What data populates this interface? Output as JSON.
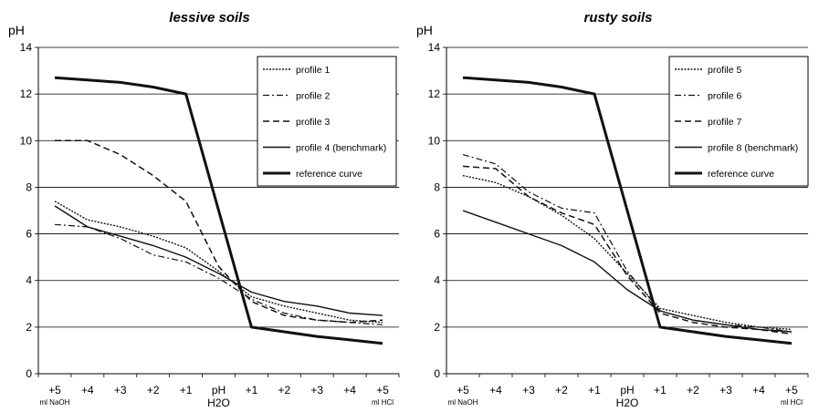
{
  "chart_data": [
    {
      "type": "line",
      "title": "lessive soils",
      "ylabel": "pH",
      "ylim": [
        0,
        14
      ],
      "yticks": [
        0,
        2,
        4,
        6,
        8,
        10,
        12,
        14
      ],
      "grid": true,
      "legend": "top-right",
      "categories": [
        "+5",
        "+4",
        "+3",
        "+2",
        "+1",
        "pH",
        "+1",
        "+2",
        "+3",
        "+4",
        "+5"
      ],
      "xlabel_left_sub": "ml NaOH",
      "xlabel_center_sub": "H2O",
      "xlabel_right_sub": "ml HCl",
      "series": [
        {
          "name": "profile 1",
          "style": "dotted",
          "values": [
            7.4,
            6.6,
            6.3,
            5.9,
            5.4,
            4.4,
            3.3,
            2.9,
            2.6,
            2.3,
            2.2
          ]
        },
        {
          "name": "profile 2",
          "style": "dashdot",
          "values": [
            6.4,
            6.3,
            5.8,
            5.1,
            4.8,
            4.1,
            3.2,
            2.6,
            2.3,
            2.2,
            2.1
          ]
        },
        {
          "name": "profile 3",
          "style": "dashed",
          "values": [
            10.0,
            10.0,
            9.4,
            8.5,
            7.4,
            4.6,
            3.1,
            2.5,
            2.3,
            2.2,
            2.3
          ]
        },
        {
          "name": "profile 4 (benchmark)",
          "style": "solid",
          "values": [
            7.2,
            6.3,
            5.9,
            5.5,
            5.0,
            4.3,
            3.5,
            3.1,
            2.9,
            2.6,
            2.5
          ]
        },
        {
          "name": "reference curve",
          "style": "bold",
          "values": [
            12.7,
            12.6,
            12.5,
            12.3,
            12.0,
            7.0,
            2.0,
            1.8,
            1.6,
            1.45,
            1.3
          ]
        }
      ]
    },
    {
      "type": "line",
      "title": "rusty soils",
      "ylabel": "pH",
      "ylim": [
        0,
        14
      ],
      "yticks": [
        0,
        2,
        4,
        6,
        8,
        10,
        12,
        14
      ],
      "grid": true,
      "legend": "top-right",
      "categories": [
        "+5",
        "+4",
        "+3",
        "+2",
        "+1",
        "pH",
        "+1",
        "+2",
        "+3",
        "+4",
        "+5"
      ],
      "xlabel_left_sub": "ml NaOH",
      "xlabel_center_sub": "H2O",
      "xlabel_right_sub": "ml HCl",
      "series": [
        {
          "name": "profile 5",
          "style": "dotted",
          "values": [
            8.5,
            8.2,
            7.6,
            6.8,
            5.8,
            4.3,
            2.8,
            2.5,
            2.2,
            2.0,
            1.9
          ]
        },
        {
          "name": "profile 6",
          "style": "dashdot",
          "values": [
            9.4,
            9.0,
            7.8,
            7.1,
            6.9,
            4.4,
            2.7,
            2.3,
            2.1,
            2.0,
            1.8
          ]
        },
        {
          "name": "profile 7",
          "style": "dashed",
          "values": [
            8.9,
            8.8,
            7.6,
            6.9,
            6.4,
            4.2,
            2.6,
            2.2,
            2.0,
            1.9,
            1.7
          ]
        },
        {
          "name": "profile 8 (benchmark)",
          "style": "solid",
          "values": [
            7.0,
            6.5,
            6.0,
            5.5,
            4.8,
            3.6,
            2.7,
            2.3,
            2.1,
            1.9,
            1.8
          ]
        },
        {
          "name": "reference curve",
          "style": "bold",
          "values": [
            12.7,
            12.6,
            12.5,
            12.3,
            12.0,
            7.0,
            2.0,
            1.8,
            1.6,
            1.45,
            1.3
          ]
        }
      ]
    }
  ]
}
